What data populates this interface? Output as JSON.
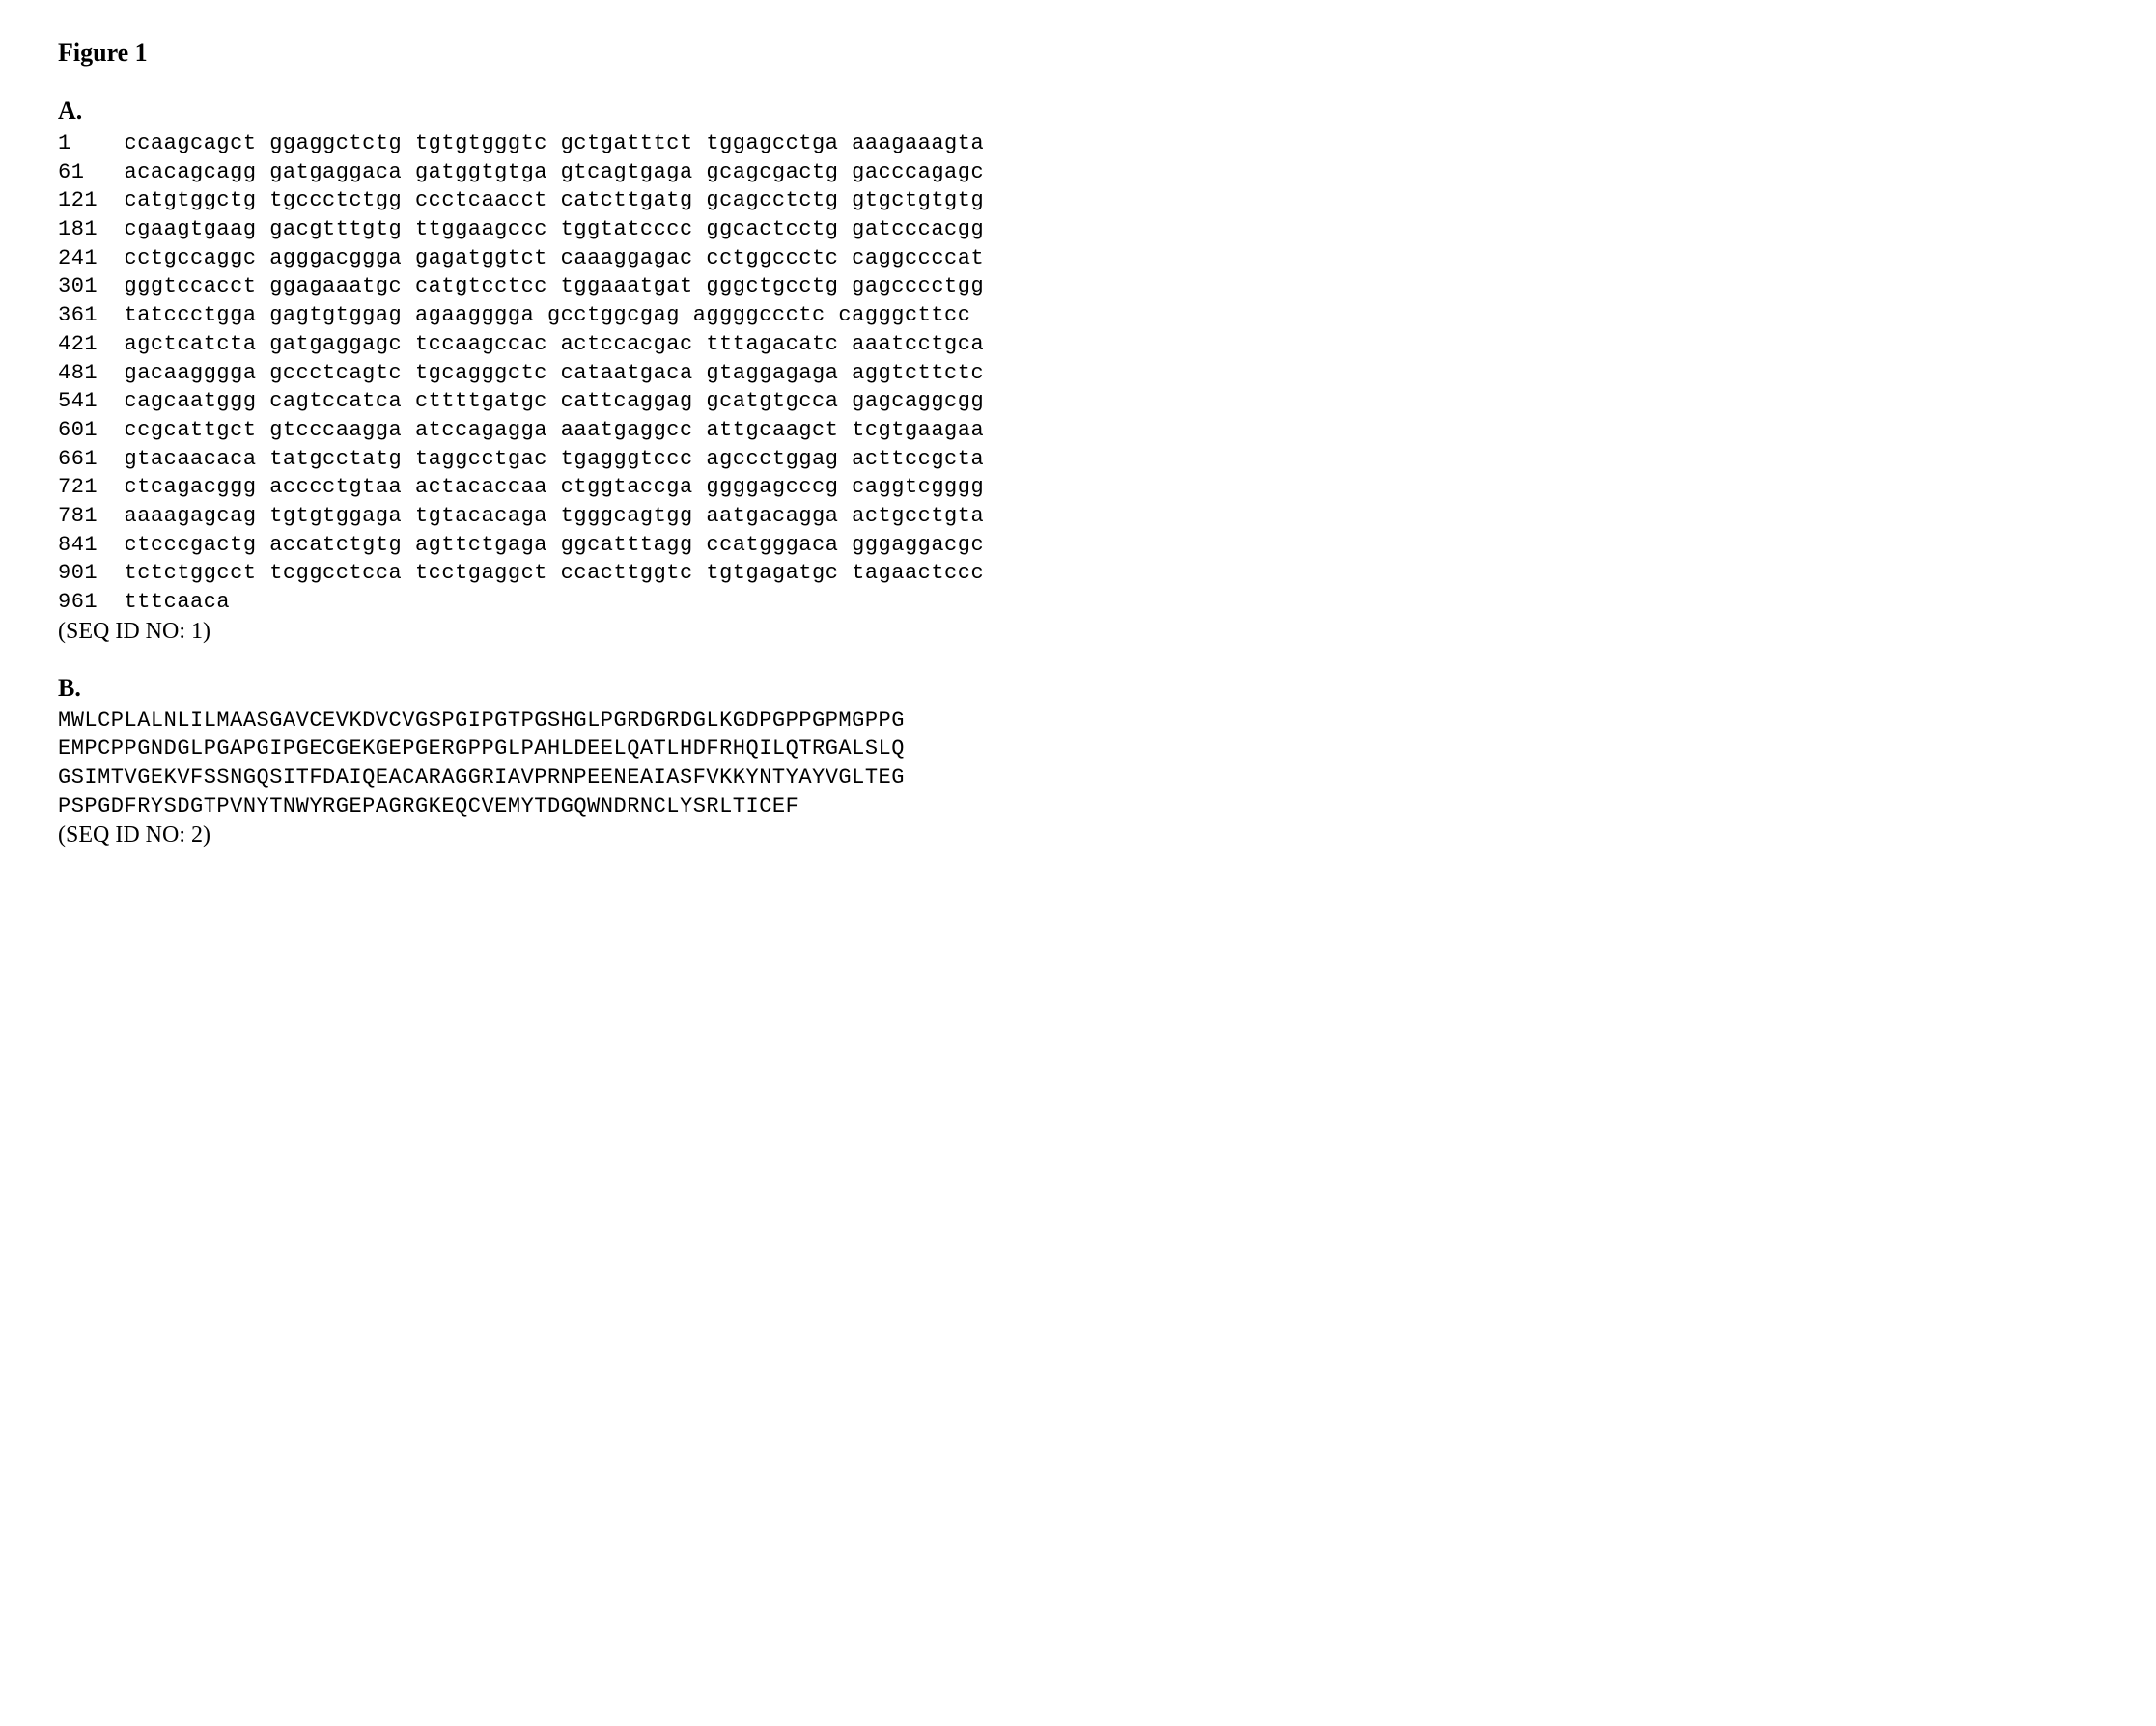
{
  "figure": {
    "title": "Figure 1",
    "sectionA": {
      "label": "A.",
      "sequence_lines": [
        "1    ccaagcagct ggaggctctg tgtgtgggtc gctgatttct tggagcctga aaagaaagta",
        "61   acacagcagg gatgaggaca gatggtgtga gtcagtgaga gcagcgactg gacccagagc",
        "121  catgtggctg tgccctctgg ccctcaacct catcttgatg gcagcctctg gtgctgtgtg",
        "181  cgaagtgaag gacgtttgtg ttggaagccc tggtatcccc ggcactcctg gatcccacgg",
        "241  cctgccaggc agggacggga gagatggtct caaaggagac cctggccctc caggccccat",
        "301  gggtccacct ggagaaatgc catgtcctcc tggaaatgat gggctgcctg gagcccctgg",
        "361  tatccctgga gagtgtggag agaagggga gcctggcgag aggggccctc cagggcttcc",
        "421  agctcatcta gatgaggagc tccaagccac actccacgac tttagacatc aaatcctgca",
        "481  gacaagggga gccctcagtc tgcagggctc cataatgaca gtaggagaga aggtcttctc",
        "541  cagcaatggg cagtccatca cttttgatgc cattcaggag gcatgtgcca gagcaggcgg",
        "601  ccgcattgct gtcccaagga atccagagga aaatgaggcc attgcaagct tcgtgaagaa",
        "661  gtacaacaca tatgcctatg taggcctgac tgagggtccc agccctggag acttccgcta",
        "721  ctcagacggg acccctgtaa actacaccaa ctggtaccga ggggagcccg caggtcgggg",
        "781  aaaagagcag tgtgtggaga tgtacacaga tgggcagtgg aatgacagga actgcctgta",
        "841  ctcccgactg accatctgtg agttctgaga ggcatttagg ccatgggaca gggaggacgc",
        "901  tctctggcct tcggcctcca tcctgaggct ccacttggtc tgtgagatgc tagaactccc",
        "961  tttcaaca"
      ],
      "seq_id": "(SEQ ID NO: 1)"
    },
    "sectionB": {
      "label": "B.",
      "protein_lines": [
        "MWLCPLALNLILMAASGAVCEVKDVCVGSPGIPGTPGSHGLPGRDGRDGLKGDPGPPGPMGPPG",
        "EMPCPPGNDGLPGAPGIPGECGEKGEPGERGPPGLPAHLDEELQATLHDFRHQILQTRGALSLQ",
        "GSIMTVGEKVFSSNGQSITFDAIQEACARAGGRIAVPRNPEENEAIASFVKKYNTYAYVGLTEG",
        "PSPGDFRYSDGTPVNYTNWYRGEPAGRGKEQCVEMYTDGQWNDRNCLYSRLTICEF"
      ],
      "seq_id": "(SEQ ID NO: 2)"
    }
  }
}
